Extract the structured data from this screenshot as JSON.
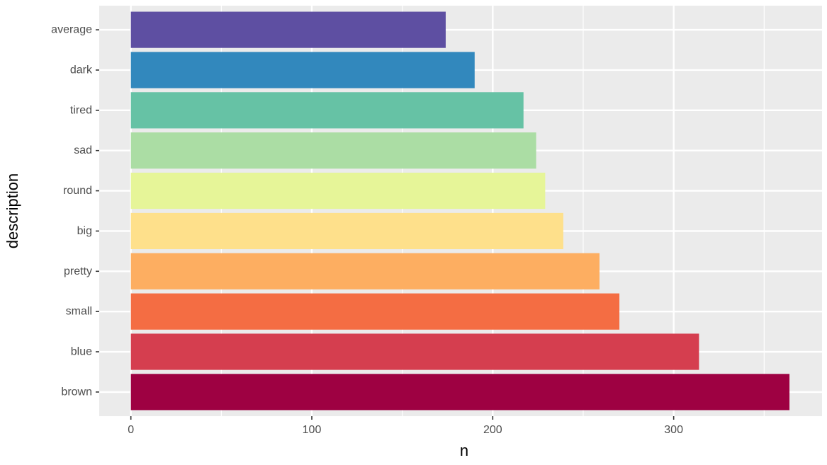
{
  "chart_data": {
    "type": "bar",
    "orientation": "horizontal",
    "title": "",
    "xlabel": "n",
    "ylabel": "description",
    "categories": [
      "average",
      "dark",
      "tired",
      "sad",
      "round",
      "big",
      "pretty",
      "small",
      "blue",
      "brown"
    ],
    "values": [
      174,
      190,
      217,
      224,
      229,
      239,
      259,
      270,
      314,
      364
    ],
    "colors": [
      "#5E4FA2",
      "#3288BD",
      "#66C2A5",
      "#ABDDA4",
      "#E6F598",
      "#FEE08B",
      "#FDAE61",
      "#F46D43",
      "#D53E4F",
      "#9E0142"
    ],
    "xlim": [
      -17.5,
      382
    ],
    "x_ticks": [
      0,
      100,
      200,
      300
    ],
    "x_tick_labels": [
      "0",
      "100",
      "200",
      "300"
    ],
    "grid": true,
    "legend": "none",
    "panel_background": "#EBEBEB",
    "grid_color": "#FFFFFF"
  }
}
